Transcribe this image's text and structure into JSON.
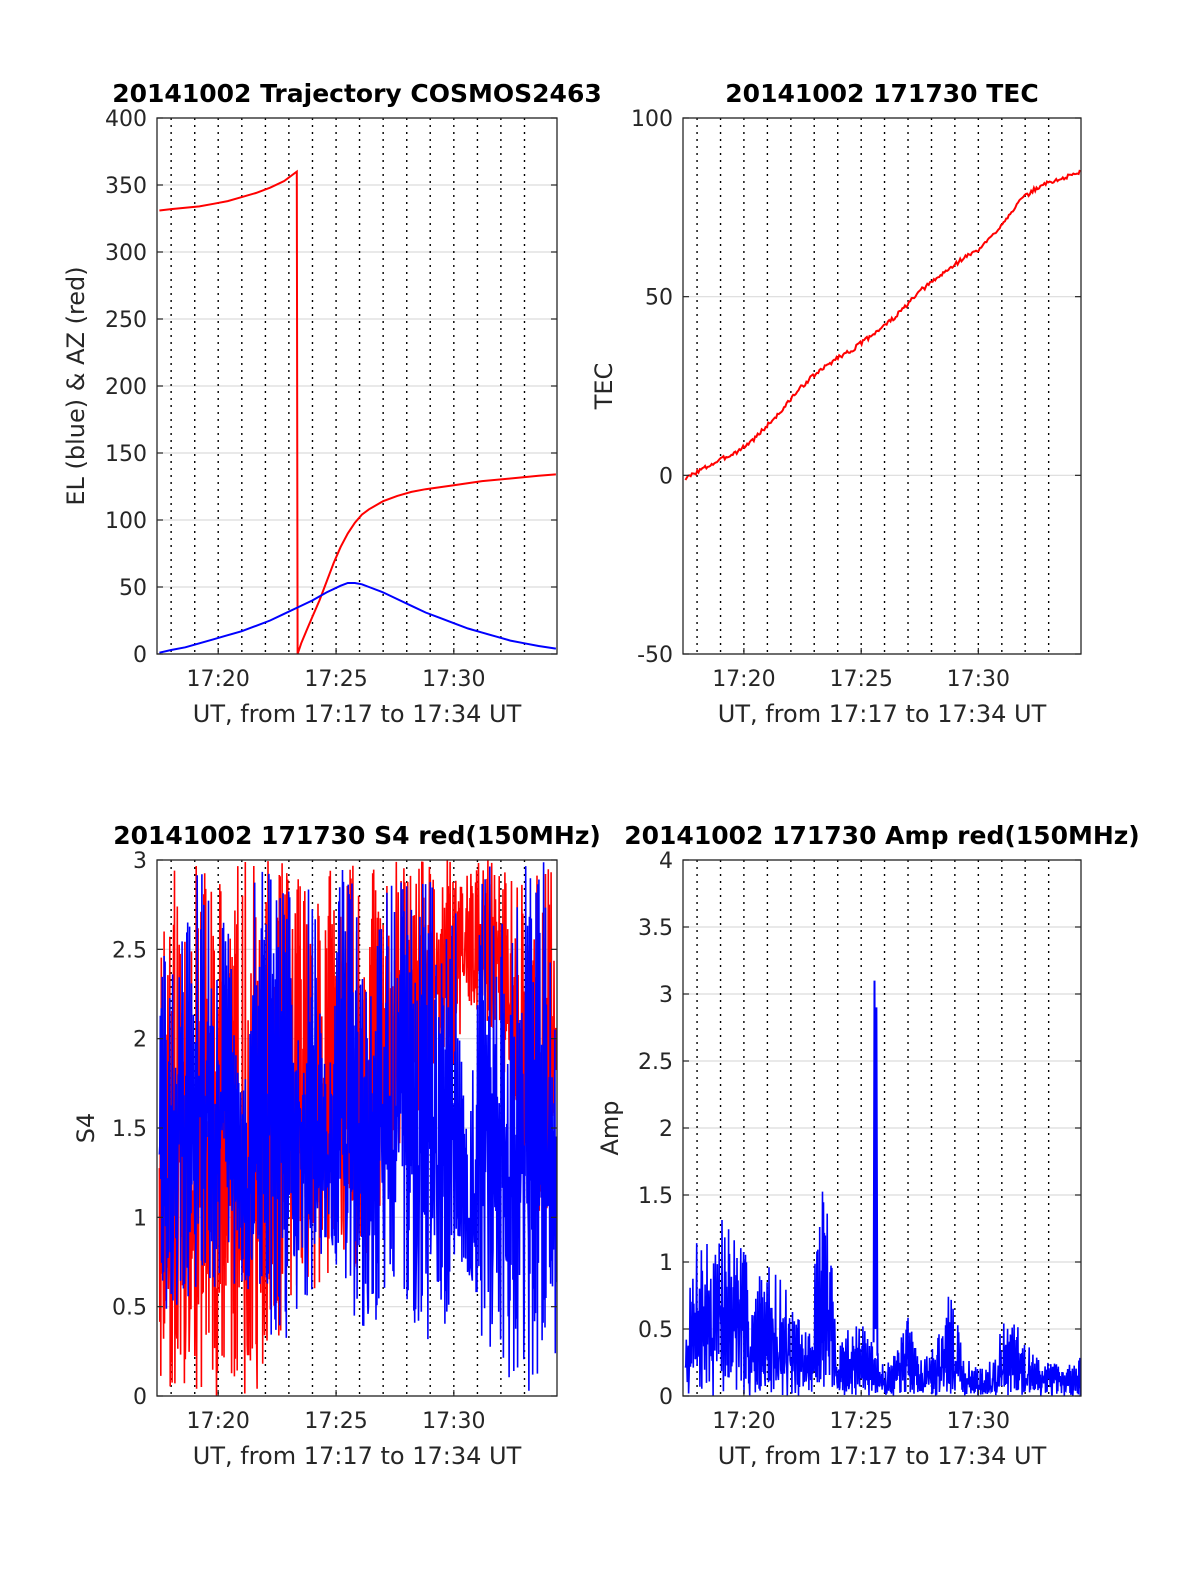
{
  "colors": {
    "el": "#0000ff",
    "az": "#ff0000",
    "tec": "#ff0000",
    "s4_red": "#ff0000",
    "s4_blue": "#0000ff",
    "amp_blue": "#0000ff",
    "amp_red": "#ff0000",
    "grid": "#dcdcdc",
    "vgrid": "#000000"
  },
  "chart_data": [
    {
      "type": "line",
      "title": "20141002 Trajectory COSMOS2463",
      "xlabel": "UT, from 17:17 to 17:34 UT",
      "ylabel": "EL (blue) & AZ (red)",
      "xlim": [
        17.29,
        17.573
      ],
      "ylim": [
        0,
        400
      ],
      "grid": true,
      "xticks": [
        17.3333,
        17.4167,
        17.5
      ],
      "xtick_labels": [
        "17:20",
        "17:25",
        "17:30"
      ],
      "yticks": [
        0,
        50,
        100,
        150,
        200,
        250,
        300,
        350,
        400
      ],
      "ytick_labels": [
        "0",
        "50",
        "100",
        "150",
        "200",
        "250",
        "300",
        "350",
        "400"
      ],
      "vlines": [
        17.3,
        17.3167,
        17.3333,
        17.35,
        17.3667,
        17.3833,
        17.4,
        17.4167,
        17.4333,
        17.45,
        17.4667,
        17.4833,
        17.5,
        17.5167,
        17.5333,
        17.55
      ],
      "series": [
        {
          "color": "#ff0000",
          "x": [
            17.2917,
            17.3,
            17.31,
            17.32,
            17.33,
            17.34,
            17.35,
            17.36,
            17.37,
            17.38,
            17.3889,
            17.3895,
            17.392,
            17.396,
            17.4,
            17.405,
            17.41,
            17.415,
            17.42,
            17.425,
            17.43,
            17.435,
            17.44,
            17.45,
            17.46,
            17.47,
            17.48,
            17.5,
            17.52,
            17.54,
            17.56,
            17.5722
          ],
          "y": [
            331,
            332,
            333,
            334,
            336,
            338,
            341,
            344,
            348,
            353,
            360,
            0,
            8,
            18,
            28,
            40,
            54,
            68,
            80,
            90,
            98,
            104,
            108,
            114,
            118,
            121,
            123,
            126,
            129,
            131,
            133,
            134
          ]
        },
        {
          "color": "#0000ff",
          "x": [
            17.2917,
            17.3,
            17.31,
            17.32,
            17.33,
            17.34,
            17.35,
            17.36,
            17.37,
            17.38,
            17.39,
            17.4,
            17.41,
            17.42,
            17.425,
            17.43,
            17.435,
            17.44,
            17.45,
            17.46,
            17.47,
            17.48,
            17.49,
            17.5,
            17.51,
            17.52,
            17.53,
            17.54,
            17.55,
            17.56,
            17.5722
          ],
          "y": [
            1,
            3,
            5,
            8,
            11,
            14,
            17,
            21,
            25,
            30,
            35,
            40,
            46,
            51,
            53,
            53,
            52,
            50,
            46,
            41,
            36,
            31,
            27,
            23,
            19,
            16,
            13,
            10,
            8,
            6,
            4
          ]
        }
      ]
    },
    {
      "type": "line",
      "title": "20141002 171730 TEC",
      "xlabel": "UT, from 17:17 to 17:34 UT",
      "ylabel": "TEC",
      "xlim": [
        17.29,
        17.573
      ],
      "ylim": [
        -50,
        100
      ],
      "grid": true,
      "xticks": [
        17.3333,
        17.4167,
        17.5
      ],
      "xtick_labels": [
        "17:20",
        "17:25",
        "17:30"
      ],
      "yticks": [
        -50,
        0,
        50,
        100
      ],
      "ytick_labels": [
        "-50",
        "0",
        "50",
        "100"
      ],
      "vlines": [
        17.3,
        17.3167,
        17.3333,
        17.35,
        17.3667,
        17.3833,
        17.4,
        17.4167,
        17.4333,
        17.45,
        17.4667,
        17.4833,
        17.5,
        17.5167,
        17.5333,
        17.55
      ],
      "series": [
        {
          "color": "#ff0000",
          "noise": 0.6,
          "x": [
            17.2917,
            17.3,
            17.31,
            17.32,
            17.33,
            17.34,
            17.35,
            17.36,
            17.37,
            17.38,
            17.39,
            17.4,
            17.41,
            17.42,
            17.43,
            17.44,
            17.45,
            17.46,
            17.47,
            17.48,
            17.49,
            17.5,
            17.51,
            17.52,
            17.53,
            17.54,
            17.55,
            17.56,
            17.5722
          ],
          "y": [
            -1,
            1,
            3,
            5,
            7,
            10,
            14,
            18,
            23,
            27,
            30,
            33,
            35,
            38,
            41,
            44,
            48,
            52,
            55,
            58,
            61,
            63,
            67,
            72,
            77,
            80,
            82,
            83,
            85
          ]
        }
      ]
    },
    {
      "type": "line",
      "title": "20141002 171730 S4 red(150MHz)",
      "xlabel": "UT, from 17:17 to 17:34 UT",
      "ylabel": "S4",
      "xlim": [
        17.29,
        17.573
      ],
      "ylim": [
        0,
        3
      ],
      "grid": true,
      "xticks": [
        17.3333,
        17.4167,
        17.5
      ],
      "xtick_labels": [
        "17:20",
        "17:25",
        "17:30"
      ],
      "yticks": [
        0,
        0.5,
        1,
        1.5,
        2,
        2.5,
        3
      ],
      "ytick_labels": [
        "0",
        "0.5",
        "1",
        "1.5",
        "2",
        "2.5",
        "3"
      ],
      "vlines": [
        17.3,
        17.3167,
        17.3333,
        17.35,
        17.3667,
        17.3833,
        17.4,
        17.4167,
        17.4333,
        17.45,
        17.4667,
        17.4833,
        17.5,
        17.5167,
        17.5333,
        17.55
      ],
      "series": [
        {
          "color": "#ff0000",
          "spikes": true,
          "seed": 11,
          "x": [
            17.2917,
            17.31,
            17.32,
            17.33,
            17.34,
            17.35,
            17.36,
            17.37,
            17.38,
            17.39,
            17.4,
            17.41,
            17.42,
            17.43,
            17.44,
            17.45,
            17.46,
            17.47,
            17.48,
            17.49,
            17.5,
            17.51,
            17.52,
            17.53,
            17.54,
            17.55,
            17.56,
            17.5722
          ],
          "lo": [
            0,
            0,
            0,
            0,
            0,
            0,
            0,
            0,
            0.4,
            0.6,
            0.6,
            0.6,
            0.8,
            0.7,
            0.7,
            1.0,
            1.3,
            1.5,
            1.6,
            1.8,
            1.8,
            2.2,
            2.0,
            2.0,
            1.5,
            1.2,
            1.0,
            1.0
          ],
          "hi": [
            3,
            3,
            3,
            3,
            3,
            3,
            3,
            3,
            3,
            3,
            3,
            3,
            3,
            3,
            3,
            3,
            3,
            3,
            3,
            3,
            3,
            3,
            3,
            3,
            3,
            3,
            3,
            3
          ]
        },
        {
          "color": "#0000ff",
          "spikes": true,
          "seed": 29,
          "x": [
            17.2917,
            17.3,
            17.31,
            17.32,
            17.33,
            17.34,
            17.35,
            17.36,
            17.37,
            17.38,
            17.39,
            17.4,
            17.41,
            17.42,
            17.43,
            17.44,
            17.45,
            17.46,
            17.47,
            17.48,
            17.49,
            17.5,
            17.51,
            17.52,
            17.53,
            17.54,
            17.55,
            17.56,
            17.5722
          ],
          "lo": [
            0.4,
            0.5,
            0.5,
            0.5,
            0.6,
            0.7,
            0.5,
            0.5,
            0.3,
            0.3,
            0.5,
            0.6,
            0.9,
            0.6,
            0.4,
            0.3,
            0.5,
            0.6,
            0.4,
            0.3,
            0.3,
            0.6,
            0.7,
            0.3,
            0.2,
            0.0,
            0.0,
            0.0,
            0.0
          ],
          "hi": [
            2.6,
            2.4,
            2.7,
            3.0,
            2.8,
            2.7,
            1.9,
            3.0,
            3.0,
            2.9,
            3.0,
            3.0,
            1.7,
            3.0,
            3.0,
            2.2,
            3.0,
            3.0,
            3.0,
            3.0,
            3.0,
            3.0,
            1.3,
            3.0,
            3.0,
            3.0,
            3.0,
            3.0,
            3.0
          ]
        }
      ]
    },
    {
      "type": "line",
      "title": "20141002 171730 Amp red(150MHz)",
      "xlabel": "UT, from 17:17 to 17:34 UT",
      "ylabel": "Amp",
      "xlim": [
        17.29,
        17.573
      ],
      "ylim": [
        0,
        4
      ],
      "grid": true,
      "xticks": [
        17.3333,
        17.4167,
        17.5
      ],
      "xtick_labels": [
        "17:20",
        "17:25",
        "17:30"
      ],
      "yticks": [
        0,
        0.5,
        1,
        1.5,
        2,
        2.5,
        3,
        3.5,
        4
      ],
      "ytick_labels": [
        "0",
        "0.5",
        "1",
        "1.5",
        "2",
        "2.5",
        "3",
        "3.5",
        "4"
      ],
      "vlines": [
        17.3,
        17.3167,
        17.3333,
        17.35,
        17.3667,
        17.3833,
        17.4,
        17.4167,
        17.4333,
        17.45,
        17.4667,
        17.4833,
        17.5,
        17.5167,
        17.5333,
        17.55
      ],
      "series": [
        {
          "color": "#0000ff",
          "spikes": true,
          "seed": 7,
          "x": [
            17.2917,
            17.3,
            17.31,
            17.32,
            17.33,
            17.34,
            17.35,
            17.36,
            17.37,
            17.38,
            17.39,
            17.4,
            17.41,
            17.42,
            17.43,
            17.44,
            17.45,
            17.46,
            17.47,
            17.48,
            17.49,
            17.5,
            17.51,
            17.52,
            17.53,
            17.54,
            17.55,
            17.56,
            17.5722
          ],
          "lo": [
            0,
            0,
            0,
            0,
            0,
            0,
            0,
            0,
            0,
            0,
            0,
            0,
            0,
            0,
            0,
            0,
            0,
            0,
            0,
            0,
            0,
            0,
            0,
            0,
            0,
            0,
            0,
            0,
            0
          ],
          "hi": [
            0.5,
            1.3,
            1.2,
            1.4,
            1.2,
            0.9,
            1.0,
            0.9,
            0.6,
            0.5,
            1.8,
            0.4,
            0.6,
            0.5,
            0.3,
            0.3,
            0.6,
            0.3,
            0.4,
            0.8,
            0.3,
            0.2,
            0.3,
            0.6,
            0.5,
            0.3,
            0.3,
            0.2,
            0.3
          ]
        },
        {
          "color": "#0000ff",
          "x": [
            17.4255,
            17.4262,
            17.4268,
            17.4275,
            17.4282
          ],
          "y": [
            0.4,
            3.1,
            0.5,
            2.9,
            0.3
          ]
        }
      ]
    }
  ]
}
